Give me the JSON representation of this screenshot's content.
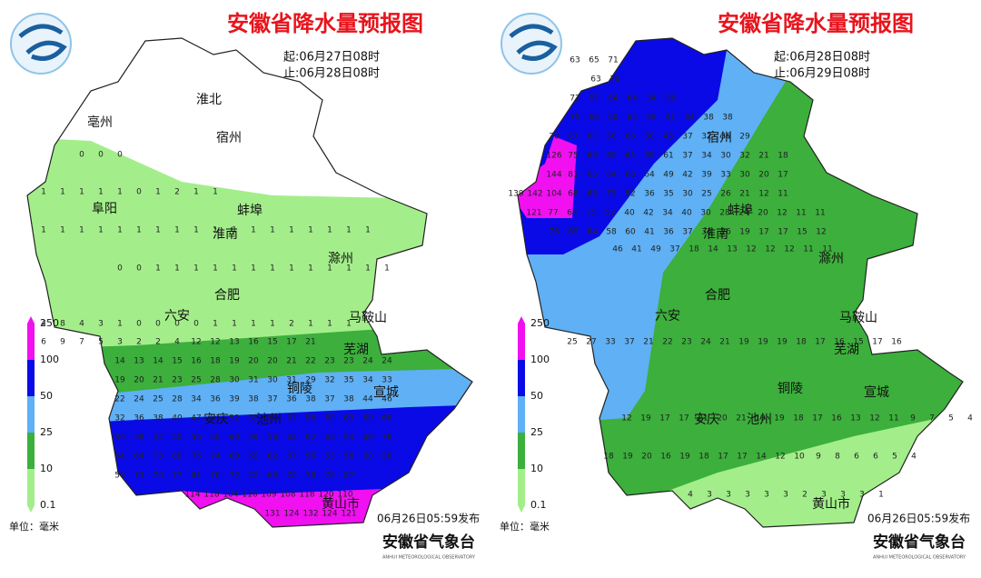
{
  "panels": [
    {
      "title": "安徽省降水量预报图",
      "start": "起:06月27日08时",
      "end": "止:06月28日08时",
      "cities": [
        "亳州",
        "淮北",
        "宿州",
        "阜阳",
        "蚌埠",
        "淮南",
        "滁州",
        "合肥",
        "六安",
        "马鞍山",
        "芜湖",
        "铜陵",
        "宣城",
        "安庆",
        "池州",
        "黄山市"
      ],
      "grid": [
        [
          0,
          0,
          0
        ],
        [
          1,
          1,
          1,
          1,
          1,
          0,
          1,
          2,
          1,
          1
        ],
        [
          1,
          1,
          1,
          1,
          1,
          1,
          1,
          1,
          1,
          1,
          1,
          1,
          1,
          1,
          1,
          1,
          1,
          1
        ],
        [
          0,
          0,
          1,
          1,
          1,
          1,
          1,
          1,
          1,
          1,
          1,
          1,
          1,
          1,
          1
        ],
        [
          4,
          8,
          4,
          3,
          1,
          0,
          0,
          0,
          0,
          1,
          1,
          1,
          1,
          2,
          1,
          1,
          1
        ],
        [
          6,
          9,
          7,
          5,
          3,
          2,
          2,
          4,
          12,
          12,
          13,
          16,
          15,
          17,
          21
        ],
        [
          14,
          13,
          14,
          15,
          16,
          18,
          19,
          20,
          20,
          21,
          22,
          23,
          23,
          24,
          24
        ],
        [
          19,
          20,
          21,
          23,
          25,
          28,
          30,
          31,
          30,
          31,
          29,
          32,
          35,
          34,
          33
        ],
        [
          22,
          24,
          25,
          28,
          34,
          36,
          39,
          38,
          37,
          36,
          38,
          37,
          38,
          44,
          46
        ],
        [
          32,
          36,
          38,
          40,
          47,
          51,
          52,
          55,
          57,
          57,
          56,
          60,
          63,
          69,
          66
        ],
        [
          40,
          39,
          42,
          50,
          56,
          56,
          60,
          59,
          58,
          62,
          62,
          63,
          64,
          69,
          78
        ],
        [
          54,
          64,
          73,
          68,
          76,
          74,
          69,
          65,
          62,
          57,
          56,
          53,
          58,
          60,
          56
        ],
        [
          56,
          73,
          70,
          77,
          81,
          76,
          72,
          72,
          69,
          70,
          78,
          76,
          87
        ],
        [
          114,
          118,
          104,
          116,
          109,
          108,
          118,
          120,
          110
        ],
        [
          131,
          124,
          132,
          124,
          121
        ]
      ],
      "legend": [
        250,
        100,
        50,
        25,
        10,
        0.1
      ],
      "unit": "单位：毫米",
      "published": "06月26日05:59发布",
      "agency": "安徽省气象台",
      "agency_en": "ANHUI METEOROLOGICAL OBSERVATORY"
    },
    {
      "title": "安徽省降水量预报图",
      "start": "起:06月28日08时",
      "end": "止:06月29日08时",
      "cities": [
        "宿州",
        "蚌埠",
        "淮南",
        "滁州",
        "合肥",
        "六安",
        "马鞍山",
        "芜湖",
        "铜陵",
        "宣城",
        "安庆",
        "池州",
        "黄山市"
      ],
      "grid": [
        [
          63,
          65,
          71
        ],
        [
          63,
          70
        ],
        [
          72,
          57,
          64,
          64,
          34,
          38
        ],
        [
          75,
          65,
          60,
          64,
          56,
          41,
          34,
          38,
          38
        ],
        [
          70,
          67,
          67,
          56,
          65,
          66,
          45,
          37,
          32,
          36,
          29
        ],
        [
          126,
          75,
          63,
          60,
          61,
          59,
          61,
          37,
          34,
          30,
          32,
          21,
          18
        ],
        [
          144,
          81,
          65,
          64,
          66,
          64,
          49,
          42,
          39,
          33,
          30,
          20,
          17
        ],
        [
          139,
          142,
          104,
          68,
          83,
          73,
          52,
          36,
          35,
          30,
          25,
          26,
          21,
          12,
          11
        ],
        [
          121,
          77,
          64,
          75,
          52,
          40,
          42,
          34,
          40,
          30,
          28,
          24,
          20,
          12,
          11,
          11
        ],
        [
          76,
          69,
          64,
          58,
          60,
          41,
          36,
          37,
          33,
          26,
          19,
          17,
          17,
          15,
          12
        ],
        [
          46,
          41,
          49,
          37,
          18,
          14,
          13,
          12,
          12,
          12,
          11,
          11
        ],
        [
          25,
          27,
          33,
          37,
          21,
          22,
          23,
          24,
          21,
          19,
          19,
          19,
          18,
          17,
          16,
          15,
          17,
          16
        ],
        [
          12,
          19,
          17,
          17,
          21,
          20,
          21,
          19,
          19,
          18,
          17,
          16,
          13,
          12,
          11,
          9,
          7,
          5,
          4
        ],
        [
          18,
          19,
          20,
          16,
          19,
          18,
          17,
          17,
          14,
          12,
          10,
          9,
          8,
          6,
          6,
          5,
          4
        ],
        [
          4,
          3,
          3,
          3,
          3,
          3,
          2,
          3,
          3,
          3,
          1
        ]
      ],
      "legend": [
        250,
        100,
        50,
        25,
        10,
        0.1
      ],
      "unit": "单位：毫米",
      "published": "06月26日05:59发布",
      "agency": "安徽省气象台",
      "agency_en": "ANHUI METEOROLOGICAL OBSERVATORY"
    }
  ]
}
